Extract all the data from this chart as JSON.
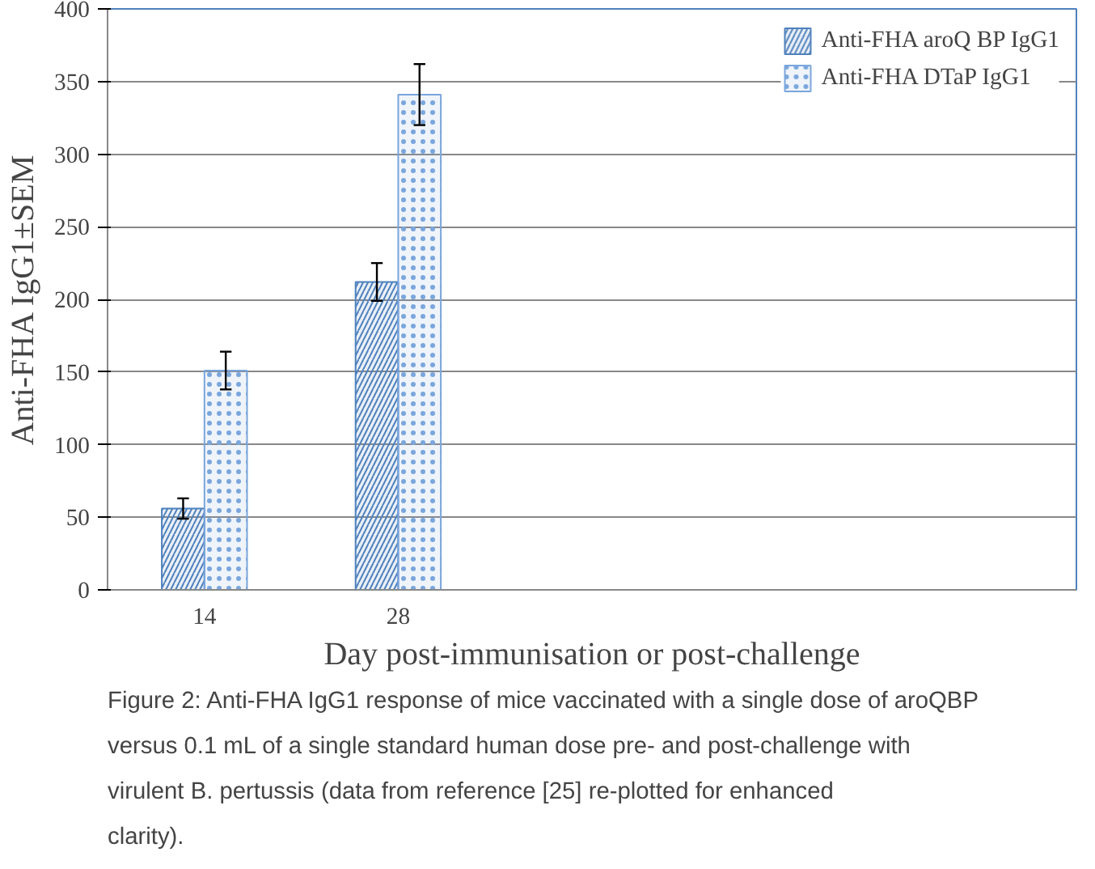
{
  "chart_data": {
    "type": "bar",
    "xlabel": "Day post-immunisation or post-challenge",
    "ylabel": "Anti-FHA IgG1±SEM",
    "categories": [
      "14",
      "28",
      null,
      null,
      null
    ],
    "series": [
      {
        "name": "Anti-FHA aroQ BP IgG1",
        "color": "#4f81bd",
        "values": [
          56,
          212,
          null,
          null,
          null
        ],
        "errors": [
          7,
          13,
          null,
          null,
          null
        ]
      },
      {
        "name": "Anti-FHA DTaP IgG1",
        "color": "#7aa6dc",
        "values": [
          151,
          341,
          null,
          null,
          null
        ],
        "errors": [
          13,
          21,
          null,
          null,
          null
        ]
      }
    ],
    "ylim": [
      0,
      400
    ],
    "yticks": [
      0,
      50,
      100,
      150,
      200,
      250,
      300,
      350,
      400
    ],
    "grid": "y",
    "legend": "top right",
    "annotations": [
      "Figure 2: Anti-FHA IgG1 response of mice vaccinated with a single dose of aroQBP versus 0.1 mL of a single standard human dose pre- and post-challenge with virulent B. pertussis (data from reference [25] re-plotted for enhanced clarity)."
    ]
  }
}
